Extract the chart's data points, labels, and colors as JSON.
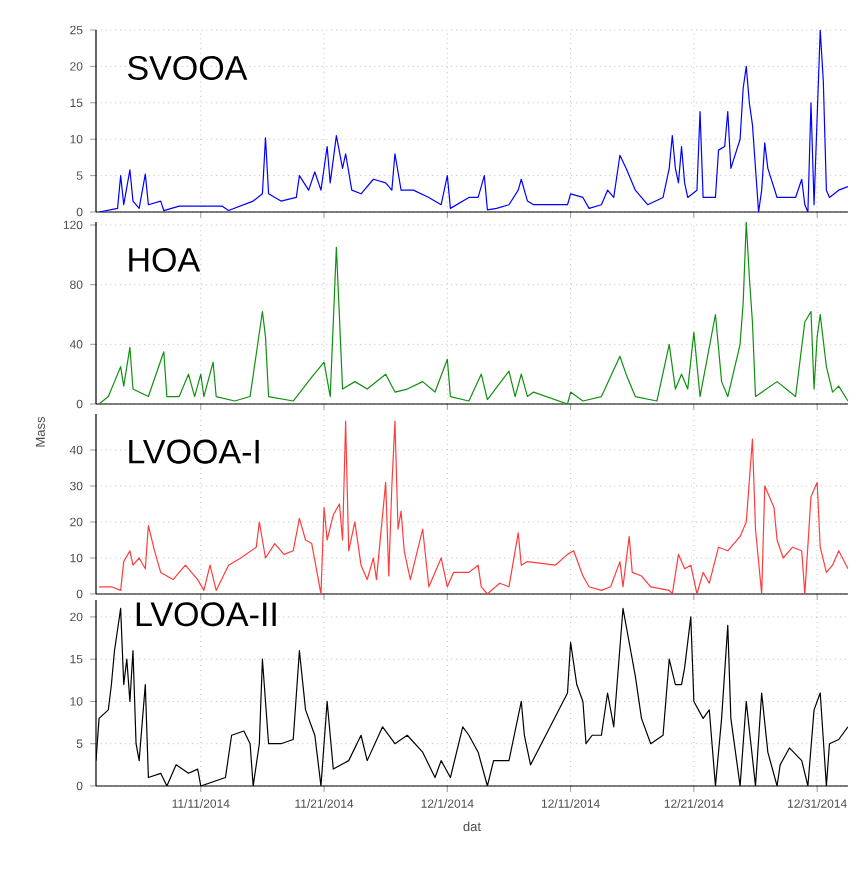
{
  "chart_data": [
    {
      "type": "line",
      "xlim": [
        "2014-11-02T12:00",
        "2015-01-02T12:00"
      ],
      "ylim": [
        0,
        25
      ],
      "yticks": [
        0,
        5,
        10,
        15,
        20,
        25
      ],
      "grid": true,
      "tick_labels": "y",
      "xticks": [
        {
          "value": "2014-11-11",
          "label": null
        },
        {
          "value": "2014-11-21",
          "label": null
        },
        {
          "value": "2014-12-01",
          "label": null
        },
        {
          "value": "2014-12-11",
          "label": null
        },
        {
          "value": "2014-12-21",
          "label": null
        },
        {
          "value": "2014-12-31",
          "label": null
        }
      ],
      "series": [
        {
          "name": "SVOOA",
          "color": "#0000ff",
          "x": [
            "2014-11-02T18:00",
            "2014-11-04T06:00",
            "2014-11-04T12:00",
            "2014-11-04T18:00",
            "2014-11-05T06:00",
            "2014-11-05T12:00",
            "2014-11-06T00:00",
            "2014-11-06T12:00",
            "2014-11-06T18:00",
            "2014-11-07T18:00",
            "2014-11-08T00:00",
            "2014-11-09T06:00",
            "2014-11-11T00:00",
            "2014-11-12T18:00",
            "2014-11-13T06:00",
            "2014-11-15T06:00",
            "2014-11-16T00:00",
            "2014-11-16T06:00",
            "2014-11-16T12:00",
            "2014-11-17T12:00",
            "2014-11-18T18:00",
            "2014-11-19T00:00",
            "2014-11-19T18:00",
            "2014-11-20T06:00",
            "2014-11-20T18:00",
            "2014-11-21T06:00",
            "2014-11-21T12:00",
            "2014-11-22T00:00",
            "2014-11-22T12:00",
            "2014-11-22T18:00",
            "2014-11-23T06:00",
            "2014-11-24T00:00",
            "2014-11-25T00:00",
            "2014-11-26T00:00",
            "2014-11-26T12:00",
            "2014-11-26T18:00",
            "2014-11-27T06:00",
            "2014-11-28T06:00",
            "2014-11-29T12:00",
            "2014-11-30T12:00",
            "2014-12-01T00:00",
            "2014-12-01T06:00",
            "2014-12-02T18:00",
            "2014-12-03T12:00",
            "2014-12-04T00:00",
            "2014-12-04T06:00",
            "2014-12-05T00:00",
            "2014-12-06T00:00",
            "2014-12-06T18:00",
            "2014-12-07T00:00",
            "2014-12-07T12:00",
            "2014-12-08T00:00",
            "2014-12-10T18:00",
            "2014-12-11T00:00",
            "2014-12-12T00:00",
            "2014-12-12T12:00",
            "2014-12-13T12:00",
            "2014-12-14T00:00",
            "2014-12-14T12:00",
            "2014-12-15T00:00",
            "2014-12-15T12:00",
            "2014-12-15T18:00",
            "2014-12-16T06:00",
            "2014-12-16T18:00",
            "2014-12-17T06:00",
            "2014-12-18T12:00",
            "2014-12-19T00:00",
            "2014-12-19T06:00",
            "2014-12-19T12:00",
            "2014-12-19T18:00",
            "2014-12-20T00:00",
            "2014-12-20T06:00",
            "2014-12-20T12:00",
            "2014-12-21T06:00",
            "2014-12-21T12:00",
            "2014-12-21T18:00",
            "2014-12-22T18:00",
            "2014-12-23T00:00",
            "2014-12-23T12:00",
            "2014-12-23T18:00",
            "2014-12-24T00:00",
            "2014-12-24T18:00",
            "2014-12-25T00:00",
            "2014-12-25T06:00",
            "2014-12-25T12:00",
            "2014-12-25T18:00",
            "2014-12-26T00:00",
            "2014-12-26T06:00",
            "2014-12-26T12:00",
            "2014-12-26T18:00",
            "2014-12-27T00:00",
            "2014-12-27T18:00",
            "2014-12-29T06:00",
            "2014-12-29T18:00",
            "2014-12-30T00:00",
            "2014-12-30T06:00",
            "2014-12-30T12:00",
            "2014-12-30T18:00",
            "2014-12-31T00:00",
            "2014-12-31T06:00",
            "2014-12-31T12:00",
            "2014-12-31T18:00",
            "2015-01-01T00:00",
            "2015-01-01T18:00",
            "2015-01-02T12:00"
          ],
          "values": [
            0,
            0.5,
            5,
            1,
            5.8,
            1.5,
            0.5,
            5.2,
            1,
            1.5,
            0.2,
            0.8,
            0.8,
            0.8,
            0.2,
            1.5,
            2.5,
            10.2,
            2.5,
            1.5,
            2,
            5,
            3,
            5.5,
            3,
            9,
            4,
            10.5,
            6,
            8,
            3,
            2.5,
            4.5,
            4,
            3,
            8,
            3,
            3,
            2,
            1,
            5,
            0.5,
            2,
            2,
            5,
            0.3,
            0.5,
            1,
            3,
            4.5,
            1.5,
            1,
            1,
            2.5,
            2,
            0.5,
            1,
            3,
            2,
            7.8,
            6,
            5,
            3,
            2,
            1,
            2,
            6,
            10.5,
            6,
            4,
            9,
            4,
            2,
            3,
            13.8,
            2,
            2,
            8.5,
            9,
            13.8,
            6,
            10,
            17,
            20,
            15,
            12,
            6,
            0,
            3,
            9.5,
            6,
            2,
            2,
            4.5,
            1,
            0,
            15,
            1,
            13,
            25,
            18,
            3,
            2,
            3,
            3.5
          ]
        }
      ]
    },
    {
      "type": "line",
      "xlim": [
        "2014-11-02T12:00",
        "2015-01-02T12:00"
      ],
      "ylim": [
        0,
        122
      ],
      "yticks": [
        0,
        40,
        80,
        120
      ],
      "grid": true,
      "tick_labels": "y",
      "xticks": [
        {
          "value": "2014-11-11",
          "label": null
        },
        {
          "value": "2014-11-21",
          "label": null
        },
        {
          "value": "2014-12-01",
          "label": null
        },
        {
          "value": "2014-12-11",
          "label": null
        },
        {
          "value": "2014-12-21",
          "label": null
        },
        {
          "value": "2014-12-31",
          "label": null
        }
      ],
      "series": [
        {
          "name": "HOA",
          "color": "#109010",
          "x": [
            "2014-11-02T18:00",
            "2014-11-03T12:00",
            "2014-11-04T00:00",
            "2014-11-04T12:00",
            "2014-11-04T18:00",
            "2014-11-05T06:00",
            "2014-11-05T12:00",
            "2014-11-06T18:00",
            "2014-11-08T00:00",
            "2014-11-08T06:00",
            "2014-11-09T06:00",
            "2014-11-10T00:00",
            "2014-11-10T12:00",
            "2014-11-11T00:00",
            "2014-11-11T06:00",
            "2014-11-12T00:00",
            "2014-11-12T06:00",
            "2014-11-13T18:00",
            "2014-11-15T00:00",
            "2014-11-16T00:00",
            "2014-11-16T06:00",
            "2014-11-16T12:00",
            "2014-11-18T12:00",
            "2014-11-20T00:00",
            "2014-11-21T00:00",
            "2014-11-21T12:00",
            "2014-11-22T00:00",
            "2014-11-22T06:00",
            "2014-11-22T12:00",
            "2014-11-23T12:00",
            "2014-11-24T12:00",
            "2014-11-26T00:00",
            "2014-11-26T18:00",
            "2014-11-27T18:00",
            "2014-11-29T00:00",
            "2014-11-30T00:00",
            "2014-12-01T00:00",
            "2014-12-01T06:00",
            "2014-12-02T18:00",
            "2014-12-03T18:00",
            "2014-12-04T06:00",
            "2014-12-06T00:00",
            "2014-12-06T12:00",
            "2014-12-07T00:00",
            "2014-12-07T12:00",
            "2014-12-08T00:00",
            "2014-12-10T18:00",
            "2014-12-11T00:00",
            "2014-12-12T00:00",
            "2014-12-13T12:00",
            "2014-12-15T00:00",
            "2014-12-15T12:00",
            "2014-12-16T06:00",
            "2014-12-18T00:00",
            "2014-12-19T00:00",
            "2014-12-19T12:00",
            "2014-12-20T00:00",
            "2014-12-20T12:00",
            "2014-12-21T00:00",
            "2014-12-21T12:00",
            "2014-12-22T18:00",
            "2014-12-23T06:00",
            "2014-12-23T18:00",
            "2014-12-24T18:00",
            "2014-12-25T00:00",
            "2014-12-25T06:00",
            "2014-12-25T12:00",
            "2014-12-25T18:00",
            "2014-12-26T00:00",
            "2014-12-27T18:00",
            "2014-12-29T06:00",
            "2014-12-30T00:00",
            "2014-12-30T12:00",
            "2014-12-30T18:00",
            "2014-12-31T00:00",
            "2014-12-31T06:00",
            "2014-12-31T18:00",
            "2015-01-01T06:00",
            "2015-01-01T18:00",
            "2015-01-02T12:00"
          ],
          "values": [
            0,
            5,
            15,
            25,
            12,
            38,
            10,
            5,
            35,
            5,
            5,
            20,
            5,
            20,
            5,
            28,
            5,
            2,
            5,
            62,
            45,
            5,
            2,
            18,
            28,
            5,
            105,
            58,
            10,
            15,
            10,
            20,
            8,
            10,
            15,
            8,
            30,
            5,
            2,
            20,
            3,
            22,
            5,
            20,
            5,
            8,
            0,
            8,
            2,
            5,
            32,
            20,
            5,
            2,
            40,
            10,
            20,
            10,
            48,
            5,
            60,
            15,
            5,
            40,
            68,
            122,
            85,
            55,
            5,
            15,
            5,
            55,
            62,
            10,
            45,
            60,
            25,
            8,
            12,
            2
          ]
        }
      ]
    },
    {
      "type": "line",
      "xlim": [
        "2014-11-02T12:00",
        "2015-01-02T12:00"
      ],
      "ylim": [
        0,
        50
      ],
      "yticks": [
        0,
        10,
        20,
        30,
        40
      ],
      "grid": true,
      "tick_labels": "y",
      "ylabel": "Mass",
      "xticks": [
        {
          "value": "2014-11-11",
          "label": null
        },
        {
          "value": "2014-11-21",
          "label": null
        },
        {
          "value": "2014-12-01",
          "label": null
        },
        {
          "value": "2014-12-11",
          "label": null
        },
        {
          "value": "2014-12-21",
          "label": null
        },
        {
          "value": "2014-12-31",
          "label": null
        }
      ],
      "series": [
        {
          "name": "LVOOA-I",
          "color": "#ff3c3c",
          "x": [
            "2014-11-02T18:00",
            "2014-11-03T18:00",
            "2014-11-04T12:00",
            "2014-11-04T18:00",
            "2014-11-05T06:00",
            "2014-11-05T12:00",
            "2014-11-06T00:00",
            "2014-11-06T12:00",
            "2014-11-06T18:00",
            "2014-11-07T06:00",
            "2014-11-07T18:00",
            "2014-11-08T18:00",
            "2014-11-09T18:00",
            "2014-11-10T18:00",
            "2014-11-11T06:00",
            "2014-11-11T18:00",
            "2014-11-12T06:00",
            "2014-11-13T06:00",
            "2014-11-14T06:00",
            "2014-11-15T12:00",
            "2014-11-15T18:00",
            "2014-11-16T06:00",
            "2014-11-17T00:00",
            "2014-11-17T18:00",
            "2014-11-18T12:00",
            "2014-11-19T00:00",
            "2014-11-19T12:00",
            "2014-11-20T00:00",
            "2014-11-20T18:00",
            "2014-11-21T00:00",
            "2014-11-21T06:00",
            "2014-11-21T18:00",
            "2014-11-22T06:00",
            "2014-11-22T12:00",
            "2014-11-22T18:00",
            "2014-11-23T00:00",
            "2014-11-23T12:00",
            "2014-11-24T00:00",
            "2014-11-24T12:00",
            "2014-11-25T00:00",
            "2014-11-25T06:00",
            "2014-11-26T00:00",
            "2014-11-26T06:00",
            "2014-11-26T12:00",
            "2014-11-26T18:00",
            "2014-11-27T00:00",
            "2014-11-27T06:00",
            "2014-11-27T12:00",
            "2014-11-28T00:00",
            "2014-11-29T00:00",
            "2014-11-29T12:00",
            "2014-11-30T00:00",
            "2014-11-30T12:00",
            "2014-12-01T00:00",
            "2014-12-01T12:00",
            "2014-12-02T18:00",
            "2014-12-03T12:00",
            "2014-12-03T18:00",
            "2014-12-04T06:00",
            "2014-12-05T06:00",
            "2014-12-06T00:00",
            "2014-12-06T18:00",
            "2014-12-07T00:00",
            "2014-12-07T12:00",
            "2014-12-09T18:00",
            "2014-12-10T18:00",
            "2014-12-11T06:00",
            "2014-12-12T00:00",
            "2014-12-12T12:00",
            "2014-12-13T12:00",
            "2014-12-14T06:00",
            "2014-12-15T00:00",
            "2014-12-15T06:00",
            "2014-12-15T18:00",
            "2014-12-16T00:00",
            "2014-12-16T18:00",
            "2014-12-17T12:00",
            "2014-12-19T00:00",
            "2014-12-19T06:00",
            "2014-12-19T18:00",
            "2014-12-20T06:00",
            "2014-12-20T18:00",
            "2014-12-21T06:00",
            "2014-12-21T18:00",
            "2014-12-22T06:00",
            "2014-12-23T00:00",
            "2014-12-23T18:00",
            "2014-12-24T18:00",
            "2014-12-25T06:00",
            "2014-12-25T18:00",
            "2014-12-26T00:00",
            "2014-12-26T12:00",
            "2014-12-26T18:00",
            "2014-12-27T12:00",
            "2014-12-27T18:00",
            "2014-12-28T06:00",
            "2014-12-29T00:00",
            "2014-12-29T18:00",
            "2014-12-30T00:00",
            "2014-12-30T12:00",
            "2014-12-31T00:00",
            "2014-12-31T06:00",
            "2014-12-31T18:00",
            "2015-01-01T06:00",
            "2015-01-01T18:00",
            "2015-01-02T12:00"
          ],
          "values": [
            2,
            2,
            1,
            9,
            12,
            8,
            10,
            7,
            19,
            12,
            6,
            4,
            8,
            4,
            1,
            8,
            1,
            8,
            10,
            13,
            20,
            10,
            14,
            11,
            12,
            21,
            15,
            14,
            0,
            24,
            15,
            22,
            25,
            15,
            48,
            12,
            20,
            8,
            4,
            10,
            4,
            31,
            5,
            30,
            48,
            18,
            23,
            12,
            4,
            18,
            2,
            6,
            10,
            2,
            6,
            6,
            8,
            2,
            0,
            3,
            2,
            17,
            8,
            9,
            8,
            11,
            12,
            5,
            2,
            1,
            2,
            9,
            2,
            16,
            6,
            5,
            2,
            1,
            0,
            11,
            7,
            8,
            0,
            6,
            3,
            13,
            12,
            16,
            20,
            43,
            18,
            0,
            30,
            24,
            15,
            10,
            13,
            12,
            0,
            27,
            31,
            13,
            6,
            8,
            12,
            7
          ]
        }
      ]
    },
    {
      "type": "line",
      "xlim": [
        "2014-11-02T12:00",
        "2015-01-02T12:00"
      ],
      "ylim": [
        0,
        22
      ],
      "yticks": [
        0,
        5,
        10,
        15,
        20
      ],
      "grid": true,
      "xlabel": "dat",
      "xticks": [
        {
          "value": "2014-11-11",
          "label": "11/11/2014"
        },
        {
          "value": "2014-11-21",
          "label": "11/21/2014"
        },
        {
          "value": "2014-12-01",
          "label": "12/1/2014"
        },
        {
          "value": "2014-12-11",
          "label": "12/11/2014"
        },
        {
          "value": "2014-12-21",
          "label": "12/21/2014"
        },
        {
          "value": "2014-12-31",
          "label": "12/31/2014"
        }
      ],
      "series": [
        {
          "name": "LVOOA-II",
          "color": "#000000",
          "x": [
            "2014-11-02T12:00",
            "2014-11-02T18:00",
            "2014-11-03T12:00",
            "2014-11-03T18:00",
            "2014-11-04T00:00",
            "2014-11-04T12:00",
            "2014-11-04T18:00",
            "2014-11-05T00:00",
            "2014-11-05T06:00",
            "2014-11-05T12:00",
            "2014-11-05T18:00",
            "2014-11-06T00:00",
            "2014-11-06T12:00",
            "2014-11-06T18:00",
            "2014-11-07T18:00",
            "2014-11-08T06:00",
            "2014-11-09T00:00",
            "2014-11-10T00:00",
            "2014-11-10T18:00",
            "2014-11-11T00:00",
            "2014-11-12T00:00",
            "2014-11-13T00:00",
            "2014-11-13T12:00",
            "2014-11-14T12:00",
            "2014-11-15T00:00",
            "2014-11-15T06:00",
            "2014-11-15T18:00",
            "2014-11-16T00:00",
            "2014-11-16T12:00",
            "2014-11-17T12:00",
            "2014-11-18T12:00",
            "2014-11-19T00:00",
            "2014-11-19T12:00",
            "2014-11-20T06:00",
            "2014-11-20T18:00",
            "2014-11-21T06:00",
            "2014-11-21T18:00",
            "2014-11-23T00:00",
            "2014-11-24T00:00",
            "2014-11-24T12:00",
            "2014-11-25T18:00",
            "2014-11-26T18:00",
            "2014-11-27T18:00",
            "2014-11-29T00:00",
            "2014-11-30T00:00",
            "2014-11-30T12:00",
            "2014-12-01T06:00",
            "2014-12-02T06:00",
            "2014-12-02T18:00",
            "2014-12-03T12:00",
            "2014-12-04T06:00",
            "2014-12-04T18:00",
            "2014-12-06T00:00",
            "2014-12-07T00:00",
            "2014-12-07T06:00",
            "2014-12-07T18:00",
            "2014-12-10T18:00",
            "2014-12-11T00:00",
            "2014-12-11T12:00",
            "2014-12-12T00:00",
            "2014-12-12T06:00",
            "2014-12-12T18:00",
            "2014-12-13T12:00",
            "2014-12-14T00:00",
            "2014-12-14T12:00",
            "2014-12-15T06:00",
            "2014-12-15T18:00",
            "2014-12-16T06:00",
            "2014-12-16T18:00",
            "2014-12-17T12:00",
            "2014-12-18T12:00",
            "2014-12-19T00:00",
            "2014-12-19T12:00",
            "2014-12-20T00:00",
            "2014-12-20T06:00",
            "2014-12-20T18:00",
            "2014-12-21T00:00",
            "2014-12-21T18:00",
            "2014-12-22T06:00",
            "2014-12-22T18:00",
            "2014-12-23T06:00",
            "2014-12-23T18:00",
            "2014-12-24T00:00",
            "2014-12-24T18:00",
            "2014-12-25T06:00",
            "2014-12-26T00:00",
            "2014-12-26T12:00",
            "2014-12-27T00:00",
            "2014-12-27T18:00",
            "2014-12-28T00:00",
            "2014-12-28T18:00",
            "2014-12-29T18:00",
            "2014-12-30T06:00",
            "2014-12-30T18:00",
            "2014-12-31T06:00",
            "2014-12-31T18:00",
            "2015-01-01T00:00",
            "2015-01-01T18:00",
            "2015-01-02T12:00"
          ],
          "values": [
            3,
            8,
            9,
            12,
            16,
            21,
            12,
            15,
            10,
            16,
            5,
            3,
            12,
            1,
            1.5,
            0,
            2.5,
            1.5,
            2,
            0,
            0.5,
            1,
            6,
            6.5,
            5,
            0,
            5,
            15,
            5,
            5,
            5.5,
            16,
            9,
            6,
            0,
            10,
            2,
            3,
            6,
            3,
            7,
            5,
            6,
            4,
            1,
            3,
            1,
            7,
            6,
            4,
            0,
            3,
            3,
            10,
            6,
            2.5,
            11,
            17,
            12,
            10,
            5,
            6,
            6,
            11,
            7,
            21,
            17,
            13,
            8,
            5,
            6,
            15,
            12,
            12,
            14,
            20,
            10,
            8,
            9,
            0,
            8,
            19,
            8,
            0,
            10,
            0,
            11,
            4,
            0,
            2.5,
            4.5,
            3,
            0,
            9,
            11,
            0,
            5,
            5.5,
            7
          ]
        }
      ]
    }
  ]
}
